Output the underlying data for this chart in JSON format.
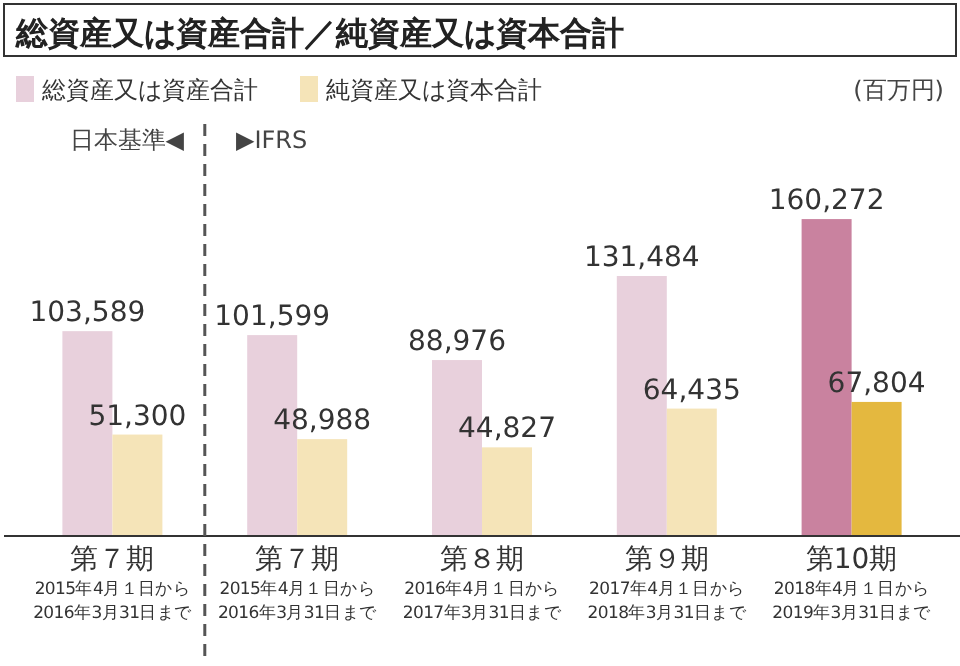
{
  "chart_data": {
    "type": "bar",
    "title": "総資産又は資産合計／純資産又は資本合計",
    "categories": [
      "第７期\n2015年4月１日から\n2016年3月31日まで",
      "第７期\n2015年4月１日から\n2016年3月31日まで",
      "第８期\n2016年4月１日から\n2017年3月31日まで",
      "第９期\n2017年4月１日から\n2018年3月31日まで",
      "第10期\n2018年4月１日から\n2019年3月31日まで"
    ],
    "series": [
      {
        "name": "総資産又は資産合計",
        "color": "#e8d0dc",
        "colors": [
          "#e8d0dc",
          "#e8d0dc",
          "#e8d0dc",
          "#e8d0dc",
          "#c9829f"
        ],
        "values": [
          103589,
          101599,
          88976,
          131484,
          160272
        ],
        "value_labels": [
          "103,589",
          "101,599",
          "88,976",
          "131,484",
          "160,272"
        ]
      },
      {
        "name": "純資産又は資本合計",
        "color": "#f5e4b8",
        "colors": [
          "#f5e4b8",
          "#f5e4b8",
          "#f5e4b8",
          "#f5e4b8",
          "#e4b83f"
        ],
        "values": [
          51300,
          48988,
          44827,
          64435,
          67804
        ],
        "value_labels": [
          "51,300",
          "48,988",
          "44,827",
          "64,435",
          "67,804"
        ]
      }
    ],
    "legend": "top left",
    "annotations": [
      "(百万円)",
      "日本基準◀",
      "▶IFRS"
    ]
  }
}
